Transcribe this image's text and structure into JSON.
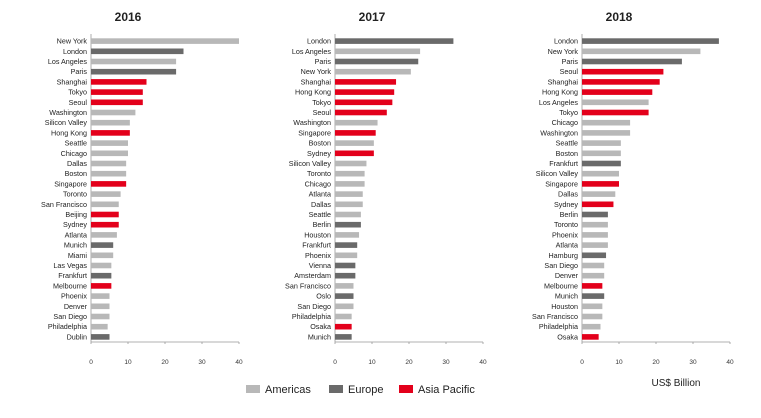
{
  "colors": {
    "Americas": "#b8b8b8",
    "Europe": "#6a6a6a",
    "Asia Pacific": "#e3001b",
    "axis": "#999999"
  },
  "legend": [
    {
      "label": "Americas",
      "color": "#b8b8b8"
    },
    {
      "label": "Europe",
      "color": "#6a6a6a"
    },
    {
      "label": "Asia Pacific",
      "color": "#e3001b"
    }
  ],
  "unit_label": "US$ Billion",
  "chart_data": [
    {
      "type": "bar",
      "orientation": "horizontal",
      "title": "2016",
      "xlim": [
        0,
        40
      ],
      "xticks": [
        "0",
        "10",
        "20",
        "30",
        "40"
      ],
      "categories": [
        "New York",
        "London",
        "Los Angeles",
        "Paris",
        "Shanghai",
        "Tokyo",
        "Seoul",
        "Washington",
        "Silicon Valley",
        "Hong Kong",
        "Seattle",
        "Chicago",
        "Dallas",
        "Boston",
        "Singapore",
        "Toronto",
        "San Francisco",
        "Beijing",
        "Sydney",
        "Atlanta",
        "Munich",
        "Miami",
        "Las Vegas",
        "Frankfurt",
        "Melbourne",
        "Phoenix",
        "Denver",
        "San Diego",
        "Philadelphia",
        "Dublin"
      ],
      "values": [
        40,
        25,
        23,
        23,
        15,
        14,
        14,
        12,
        10.5,
        10.5,
        10,
        10,
        9.5,
        9.5,
        9.5,
        8,
        7.5,
        7.5,
        7.5,
        7,
        6,
        6,
        5.5,
        5.5,
        5.5,
        5,
        5,
        5,
        4.5,
        5
      ],
      "regions": [
        "Americas",
        "Europe",
        "Americas",
        "Europe",
        "Asia Pacific",
        "Asia Pacific",
        "Asia Pacific",
        "Americas",
        "Americas",
        "Asia Pacific",
        "Americas",
        "Americas",
        "Americas",
        "Americas",
        "Asia Pacific",
        "Americas",
        "Americas",
        "Asia Pacific",
        "Asia Pacific",
        "Americas",
        "Europe",
        "Americas",
        "Americas",
        "Europe",
        "Asia Pacific",
        "Americas",
        "Americas",
        "Americas",
        "Americas",
        "Europe"
      ]
    },
    {
      "type": "bar",
      "orientation": "horizontal",
      "title": "2017",
      "xlim": [
        0,
        40
      ],
      "xticks": [
        "0",
        "10",
        "20",
        "30",
        "40"
      ],
      "categories": [
        "London",
        "Los Angeles",
        "Paris",
        "New York",
        "Shanghai",
        "Hong Kong",
        "Tokyo",
        "Seoul",
        "Washington",
        "Singapore",
        "Boston",
        "Sydney",
        "Silicon Valley",
        "Toronto",
        "Chicago",
        "Atlanta",
        "Dallas",
        "Seattle",
        "Berlin",
        "Houston",
        "Frankfurt",
        "Phoenix",
        "Vienna",
        "Amsterdam",
        "San Francisco",
        "Oslo",
        "San Diego",
        "Philadelphia",
        "Osaka",
        "Munich"
      ],
      "values": [
        32,
        23,
        22.5,
        20.5,
        16.5,
        16,
        15.5,
        14,
        11.5,
        11,
        10.5,
        10.5,
        8.5,
        8,
        8,
        7.5,
        7.5,
        7,
        7,
        6.5,
        6,
        6,
        5.5,
        5.5,
        5,
        5,
        5,
        4.5,
        4.5,
        4.5
      ],
      "regions": [
        "Europe",
        "Americas",
        "Europe",
        "Americas",
        "Asia Pacific",
        "Asia Pacific",
        "Asia Pacific",
        "Asia Pacific",
        "Americas",
        "Asia Pacific",
        "Americas",
        "Asia Pacific",
        "Americas",
        "Americas",
        "Americas",
        "Americas",
        "Americas",
        "Americas",
        "Europe",
        "Americas",
        "Europe",
        "Americas",
        "Europe",
        "Europe",
        "Americas",
        "Europe",
        "Americas",
        "Americas",
        "Asia Pacific",
        "Europe"
      ]
    },
    {
      "type": "bar",
      "orientation": "horizontal",
      "title": "2018",
      "xlim": [
        0,
        40
      ],
      "xticks": [
        "0",
        "10",
        "20",
        "30",
        "40"
      ],
      "categories": [
        "London",
        "New York",
        "Paris",
        "Seoul",
        "Shanghai",
        "Hong Kong",
        "Los Angeles",
        "Tokyo",
        "Chicago",
        "Washington",
        "Seattle",
        "Boston",
        "Frankfurt",
        "Silicon Valley",
        "Singapore",
        "Dallas",
        "Sydney",
        "Berlin",
        "Toronto",
        "Phoenix",
        "Atlanta",
        "Hamburg",
        "San Diego",
        "Denver",
        "Melbourne",
        "Munich",
        "Houston",
        "San Francisco",
        "Philadelphia",
        "Osaka"
      ],
      "values": [
        37,
        32,
        27,
        22,
        21,
        19,
        18,
        18,
        13,
        13,
        10.5,
        10.5,
        10.5,
        10,
        10,
        9,
        8.5,
        7,
        7,
        7,
        7,
        6.5,
        6,
        6,
        5.5,
        6,
        5.5,
        5.5,
        5,
        4.5
      ],
      "regions": [
        "Europe",
        "Americas",
        "Europe",
        "Asia Pacific",
        "Asia Pacific",
        "Asia Pacific",
        "Americas",
        "Asia Pacific",
        "Americas",
        "Americas",
        "Americas",
        "Americas",
        "Europe",
        "Americas",
        "Asia Pacific",
        "Americas",
        "Asia Pacific",
        "Europe",
        "Americas",
        "Americas",
        "Americas",
        "Europe",
        "Americas",
        "Americas",
        "Asia Pacific",
        "Europe",
        "Americas",
        "Americas",
        "Americas",
        "Asia Pacific"
      ]
    }
  ]
}
